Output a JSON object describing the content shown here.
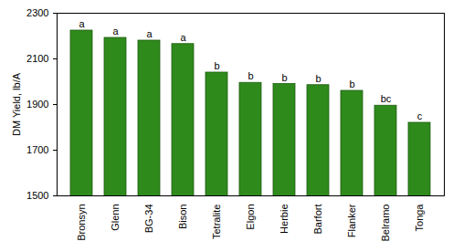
{
  "chart_data": {
    "type": "bar",
    "categories": [
      "Bronsyn",
      "Glenn",
      "BG-34",
      "Bison",
      "Tetralite",
      "Elgon",
      "Herbie",
      "Barfort",
      "Flanker",
      "Belramo",
      "Tonga"
    ],
    "values": [
      2224,
      2192,
      2180,
      2165,
      2040,
      1995,
      1990,
      1985,
      1960,
      1895,
      1820
    ],
    "annotations": [
      "a",
      "a",
      "a",
      "a",
      "b",
      "b",
      "b",
      "b",
      "b",
      "bc",
      "c"
    ],
    "y_label": "DM Yield, lb/A",
    "color": "#2f8a1c",
    "ylim": [
      1500,
      2300
    ],
    "yticks": [
      1500,
      1700,
      1900,
      2100,
      2300
    ],
    "grid": false
  }
}
